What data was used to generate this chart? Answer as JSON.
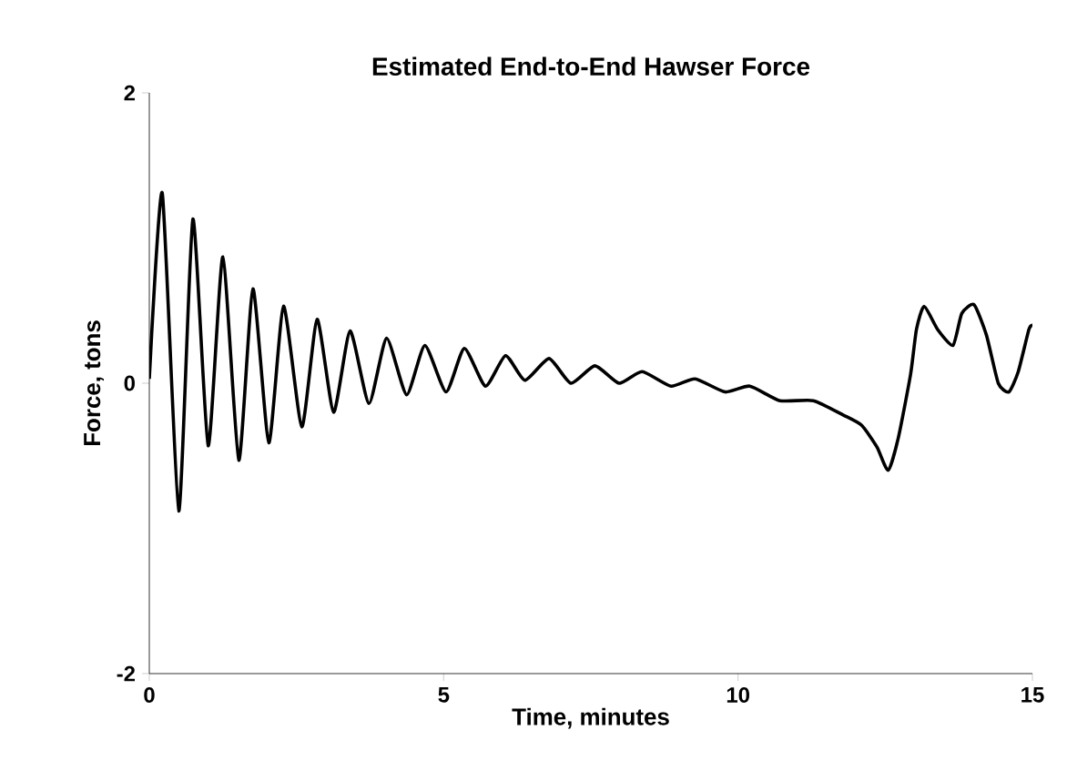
{
  "chart_data": {
    "type": "line",
    "title": "Estimated End-to-End Hawser Force",
    "xlabel": "Time, minutes",
    "ylabel": "Force, tons",
    "xlim": [
      0,
      15
    ],
    "ylim": [
      -2,
      2
    ],
    "xticks": [
      0,
      5,
      10,
      15
    ],
    "yticks": [
      -2,
      0,
      2
    ],
    "grid": false,
    "marker": "none",
    "line_style": "solid",
    "series": [
      {
        "color": "#000000",
        "x": [
          0,
          0.22,
          0.5,
          0.74,
          1.0,
          1.25,
          1.52,
          1.76,
          2.03,
          2.28,
          2.59,
          2.85,
          3.13,
          3.41,
          3.73,
          4.03,
          4.37,
          4.68,
          5.04,
          5.35,
          5.71,
          6.05,
          6.38,
          6.79,
          7.16,
          7.57,
          7.98,
          8.37,
          8.86,
          9.27,
          9.78,
          10.2,
          10.71,
          11.28,
          11.79,
          12.1,
          12.36,
          12.55,
          12.72,
          12.93,
          13.03,
          13.16,
          13.39,
          13.65,
          13.8,
          14.01,
          14.22,
          14.42,
          14.6,
          14.76,
          14.94,
          15
        ],
        "values": [
          0.03,
          1.31,
          -0.88,
          1.13,
          -0.43,
          0.87,
          -0.53,
          0.65,
          -0.41,
          0.53,
          -0.3,
          0.44,
          -0.2,
          0.36,
          -0.14,
          0.31,
          -0.08,
          0.26,
          -0.06,
          0.24,
          -0.02,
          0.19,
          0.02,
          0.17,
          0,
          0.12,
          0,
          0.08,
          -0.02,
          0.03,
          -0.06,
          -0.02,
          -0.12,
          -0.12,
          -0.22,
          -0.29,
          -0.44,
          -0.6,
          -0.38,
          0.06,
          0.37,
          0.53,
          0.37,
          0.26,
          0.48,
          0.54,
          0.33,
          0,
          -0.06,
          0.08,
          0.37,
          0.4
        ]
      }
    ]
  }
}
